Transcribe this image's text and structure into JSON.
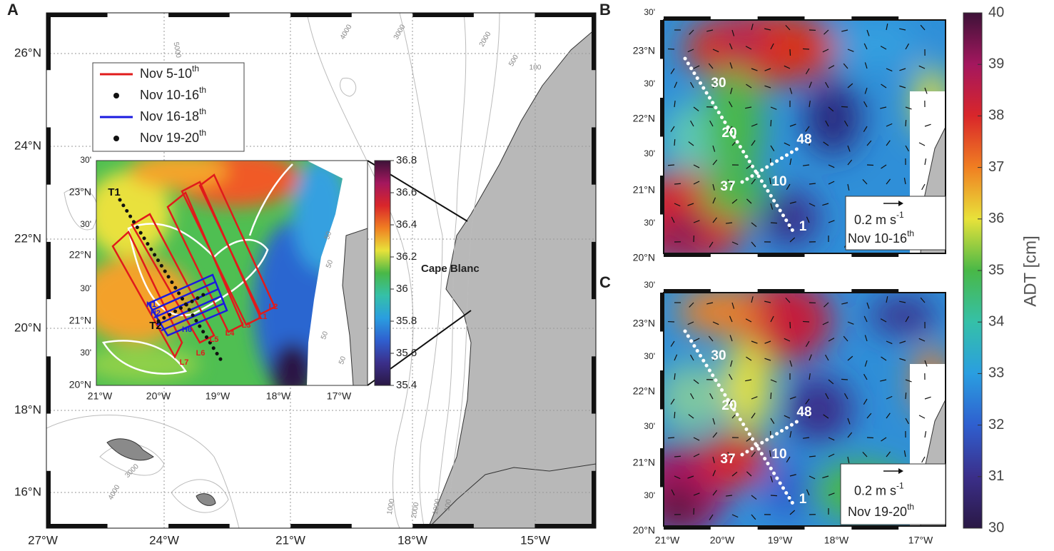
{
  "panels": {
    "A": {
      "label": "A",
      "lat_labels": [
        "26°N",
        "24°N",
        "22°N",
        "20°N",
        "18°N",
        "16°N"
      ],
      "lon_labels": [
        "27°W",
        "24°W",
        "21°W",
        "18°W",
        "15°W"
      ],
      "legend": [
        {
          "text": "Nov 5-10",
          "sup": "th"
        },
        {
          "text": "Nov 10-16",
          "sup": "th"
        },
        {
          "text": "Nov 16-18",
          "sup": "th"
        },
        {
          "text": "Nov 19-20",
          "sup": "th"
        }
      ],
      "place_label": "Cape Blanc",
      "contour_labels": [
        "5000",
        "4000",
        "3000",
        "2000",
        "500",
        "100",
        "3000",
        "4000",
        "1000",
        "2000",
        "1000",
        "100"
      ],
      "inset": {
        "lat_labels": [
          "30'",
          "23°N",
          "30'",
          "22°N",
          "30'",
          "21°N",
          "30'",
          "20°N"
        ],
        "lon_labels": [
          "21°W",
          "20°W",
          "19°W",
          "18°W",
          "17°W"
        ],
        "colorbar": {
          "range": [
            35.4,
            36.8
          ],
          "ticks": [
            36.8,
            36.6,
            36.4,
            36.2,
            36,
            35.8,
            35.6,
            35.4
          ]
        },
        "track_labels": [
          "T1",
          "T2",
          "H1",
          "H2",
          "H6",
          "L1",
          "L2",
          "L3",
          "L4",
          "L5",
          "L6",
          "L7"
        ],
        "contour_labels": [
          "50",
          "50",
          "50",
          "50"
        ]
      }
    },
    "B": {
      "label": "B",
      "lat_labels": [
        "30'",
        "23°N",
        "30'",
        "22°N",
        "30'",
        "21°N",
        "30'",
        "20°N"
      ],
      "station_labels": [
        "30",
        "20",
        "48",
        "37",
        "10",
        "1"
      ],
      "scale": {
        "text": "0.2 m s",
        "sup": "-1",
        "date": "Nov 10-16",
        "date_sup": "th"
      }
    },
    "C": {
      "label": "C",
      "lat_labels": [
        "30'",
        "23°N",
        "30'",
        "22°N",
        "30'",
        "21°N",
        "30'",
        "20°N"
      ],
      "lon_labels": [
        "21°W",
        "20°W",
        "19°W",
        "18°W",
        "17°W"
      ],
      "station_labels": [
        "30",
        "20",
        "48",
        "37",
        "10",
        "1"
      ],
      "scale": {
        "text": "0.2 m s",
        "sup": "-1",
        "date": "Nov 19-20",
        "date_sup": "th"
      }
    },
    "colorbar": {
      "label": "ADT [cm]",
      "range": [
        30,
        40
      ],
      "ticks": [
        40,
        39,
        38,
        37,
        36,
        35,
        34,
        33,
        32,
        31,
        30
      ]
    }
  }
}
